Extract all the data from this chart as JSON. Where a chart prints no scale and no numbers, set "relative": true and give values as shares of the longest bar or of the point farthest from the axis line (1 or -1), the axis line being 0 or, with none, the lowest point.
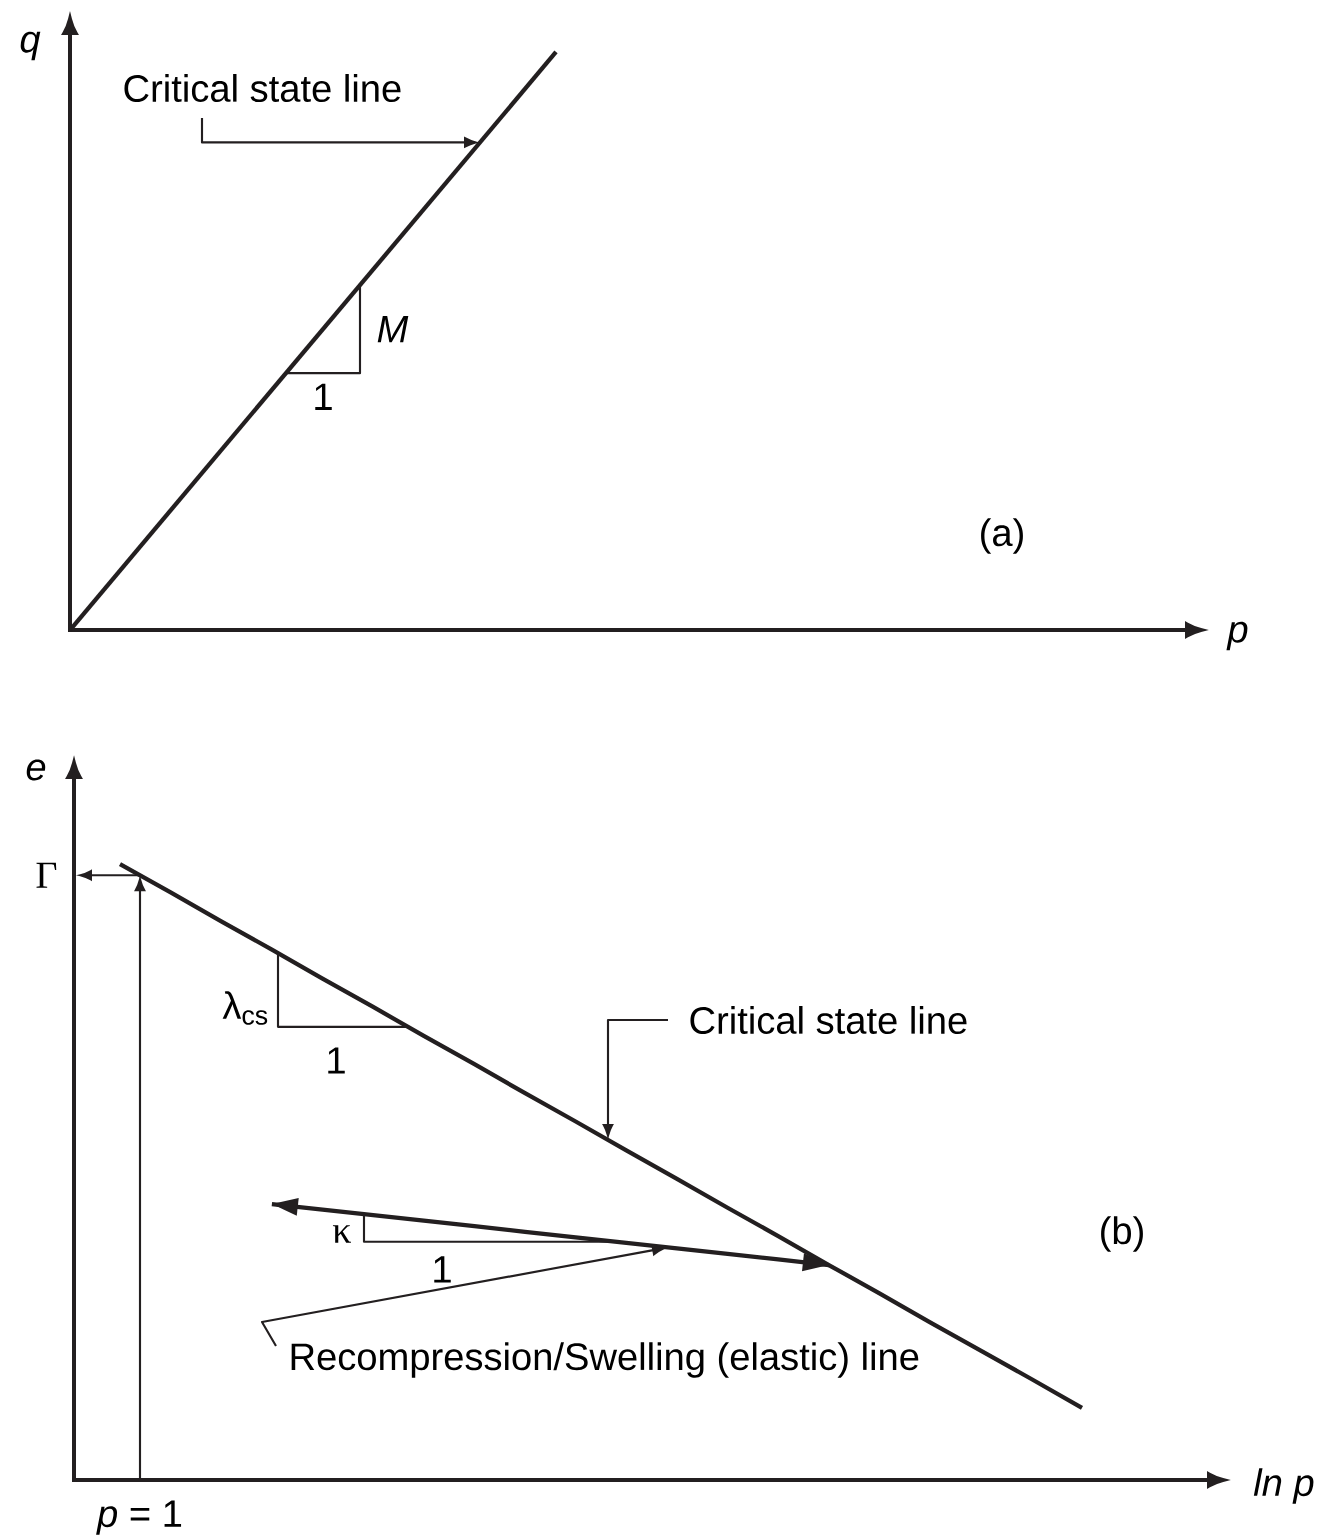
{
  "chart_data": [
    {
      "type": "line",
      "xlabel": "p",
      "ylabel": "q",
      "relative": true,
      "categories": [
        null,
        null
      ],
      "values": [
        0,
        1
      ],
      "color": "#231f20",
      "annotations": [
        "Critical state line",
        "M",
        "1",
        "(a)"
      ]
    },
    {
      "type": "line",
      "xlabel": "ln p",
      "ylabel": "e",
      "relative": true,
      "categories": [
        null,
        null,
        null,
        null,
        null,
        null,
        null,
        null,
        null,
        null,
        null,
        null,
        null,
        null,
        null,
        null,
        null,
        null,
        null,
        null
      ],
      "series": [
        {
          "color": "#231f20",
          "values": [
            1,
            0.954,
            0.907,
            0.861,
            0.814,
            0.768,
            0.721,
            0.675,
            0.628,
            0.582,
            0.535,
            0.489,
            0.442,
            0.396,
            0.349,
            0.303,
            0.256,
            0.21,
            0.164,
            0.117
          ]
        },
        {
          "color": "#231f20",
          "values": [
            null,
            null,
            null,
            0.448,
            0.439,
            0.43,
            0.421,
            0.412,
            0.403,
            0.394,
            0.385,
            0.376,
            0.367,
            0.358,
            0.349,
            null,
            null,
            null,
            null,
            null
          ]
        }
      ],
      "annotations": [
        "Critical state line",
        "λ$_{cs}$",
        "1",
        "κ",
        "1",
        "Recompression/Swelling (elastic) line",
        "(b)",
        "Γ",
        "*p* = 1"
      ]
    }
  ]
}
